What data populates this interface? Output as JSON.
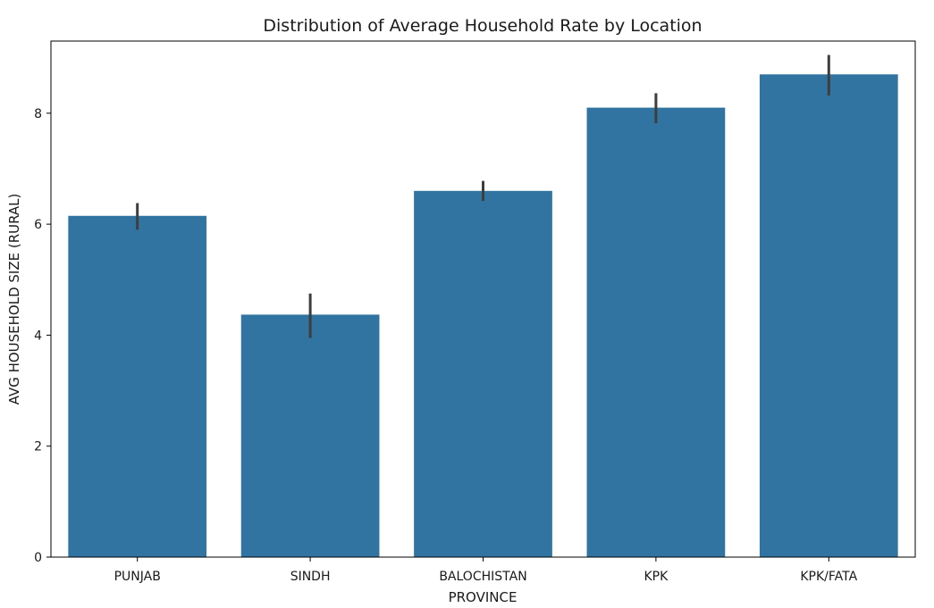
{
  "chart_data": {
    "type": "bar",
    "title": "Distribution of Average Household Rate by Location",
    "xlabel": "PROVINCE",
    "ylabel": "AVG HOUSEHOLD SIZE (RURAL)",
    "categories": [
      "PUNJAB",
      "SINDH",
      "BALOCHISTAN",
      "KPK",
      "KPK/FATA"
    ],
    "values": [
      6.15,
      4.37,
      6.6,
      8.1,
      8.7
    ],
    "error_low": [
      5.9,
      3.95,
      6.42,
      7.82,
      8.32
    ],
    "error_high": [
      6.38,
      4.75,
      6.78,
      8.36,
      9.05
    ],
    "ylim": [
      0,
      9.3
    ],
    "yticks": [
      0,
      2,
      4,
      6,
      8
    ],
    "grid": false,
    "colors": {
      "bar": "#3274a1",
      "error_bar": "#3d3d3d",
      "axes": "#000000"
    }
  }
}
